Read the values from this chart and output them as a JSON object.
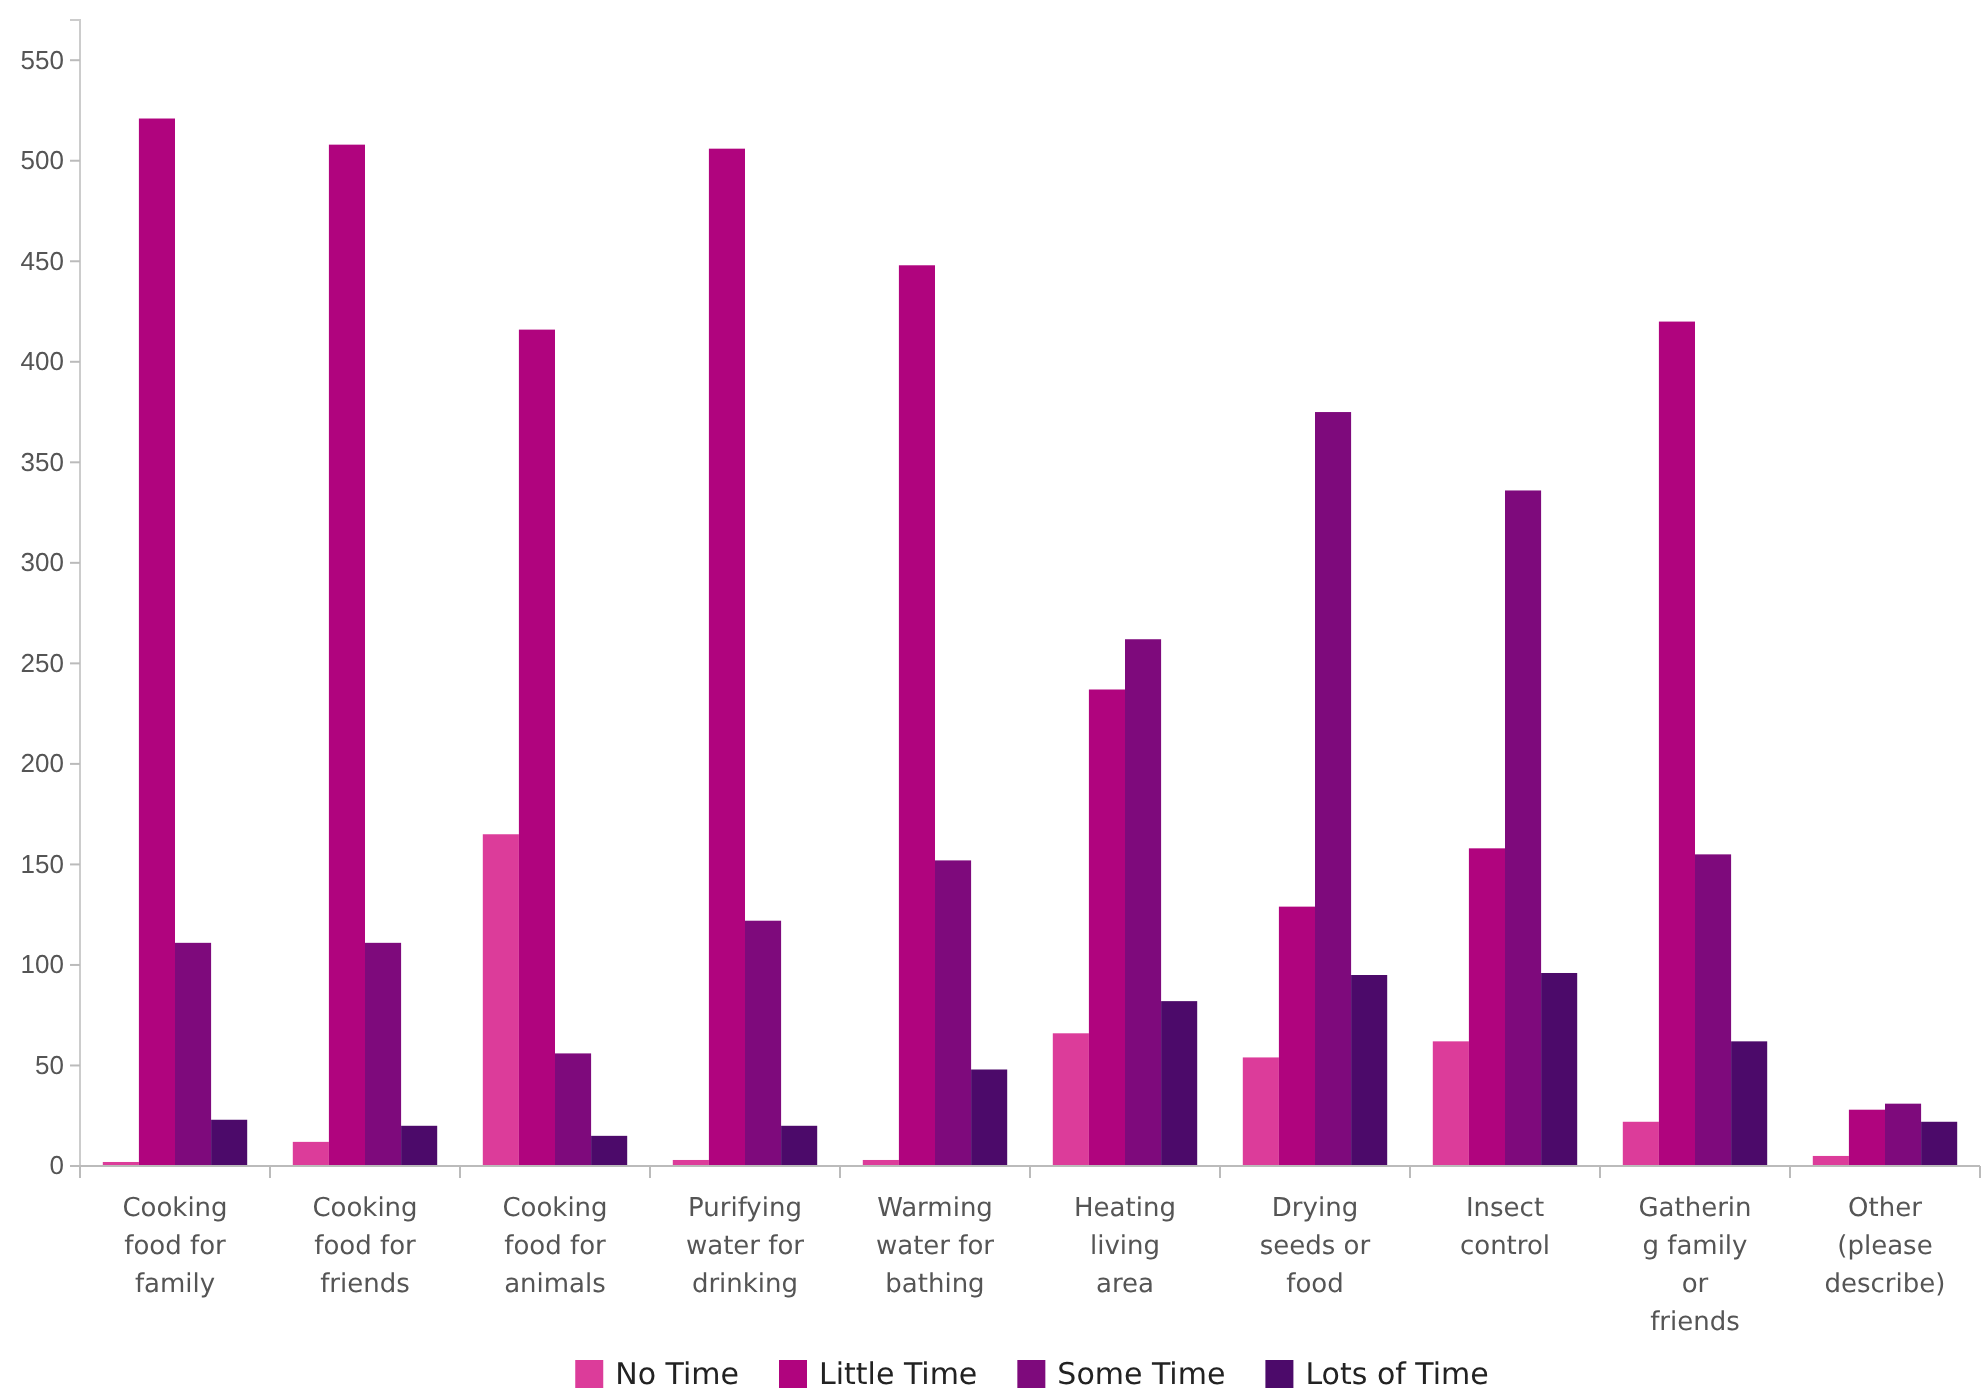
{
  "chart_data": {
    "type": "bar",
    "categories": [
      "Cooking food for family",
      "Cooking food for friends",
      "Cooking food for animals",
      "Purifying water for drinking",
      "Warming water for bathing",
      "Heating living area",
      "Drying seeds or food",
      "Insect control",
      "Gathering family or friends",
      "Other (please describe)"
    ],
    "series": [
      {
        "name": "No Time",
        "color": "#dc3c9a",
        "values": [
          2,
          12,
          165,
          3,
          3,
          66,
          54,
          62,
          22,
          5
        ]
      },
      {
        "name": "Little Time",
        "color": "#b0047e",
        "values": [
          521,
          508,
          416,
          506,
          448,
          237,
          129,
          158,
          420,
          28
        ]
      },
      {
        "name": "Some Time",
        "color": "#7e0a7c",
        "values": [
          111,
          111,
          56,
          122,
          152,
          262,
          375,
          336,
          155,
          31
        ]
      },
      {
        "name": "Lots of Time",
        "color": "#4c0a6a",
        "values": [
          23,
          20,
          15,
          20,
          48,
          82,
          95,
          96,
          62,
          22
        ]
      }
    ],
    "ylim": [
      0,
      570
    ],
    "yticks": [
      0,
      50,
      100,
      150,
      200,
      250,
      300,
      350,
      400,
      450,
      500,
      550
    ],
    "grid": false,
    "legend": "bottom"
  }
}
